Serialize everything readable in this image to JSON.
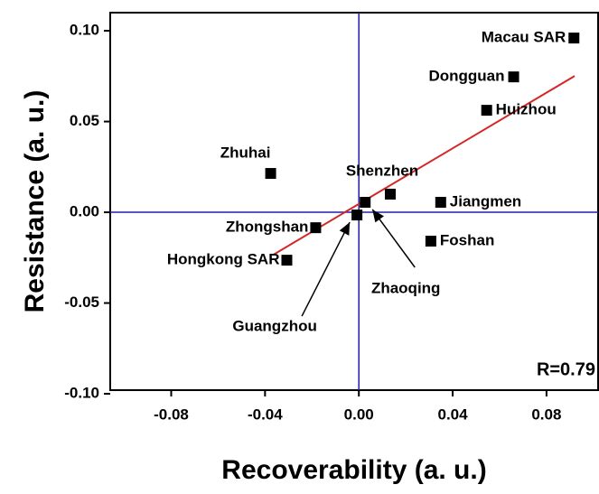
{
  "chart_data": {
    "type": "scatter",
    "x_label": "Recoverability (a. u.)",
    "y_label": "Resistance (a. u.)",
    "annotation": "R=0.79",
    "xlim": [
      -0.106,
      0.102
    ],
    "ylim": [
      -0.098,
      0.11
    ],
    "xticks": [
      -0.08,
      -0.04,
      {
        "value": 0,
        "label": "0.00"
      },
      0.04,
      0.08
    ],
    "yticks": [
      {
        "value": -0.1,
        "label": "-0.10"
      },
      -0.05,
      {
        "value": 0,
        "label": "0.00"
      },
      0.05,
      {
        "value": 0.1,
        "label": "0.10"
      }
    ],
    "color": "#000000",
    "fit_color": "#d62728",
    "quadrant_color": "#1f1fa8",
    "labels": [
      "Macau SAR",
      "Dongguan",
      "Huizhou",
      "Zhuhai",
      "Shenzhen",
      "Jiangmen",
      "Zhongshan",
      "Hongkong SAR",
      "Foshan",
      "Guangzhou",
      "Zhaoqing"
    ],
    "x": [
      0.0917,
      0.066,
      0.0545,
      -0.0376,
      0.0134,
      0.0349,
      -0.0184,
      -0.0307,
      0.0307,
      -0.0008,
      0.0027
    ],
    "values": [
      0.096,
      0.0746,
      0.0562,
      0.0214,
      0.01,
      0.0055,
      -0.0085,
      -0.0264,
      -0.0159,
      -0.0015,
      0.0055
    ],
    "fit": {
      "x": [
        -0.0365,
        0.092
      ],
      "values": [
        -0.0234,
        0.0751
      ]
    }
  }
}
